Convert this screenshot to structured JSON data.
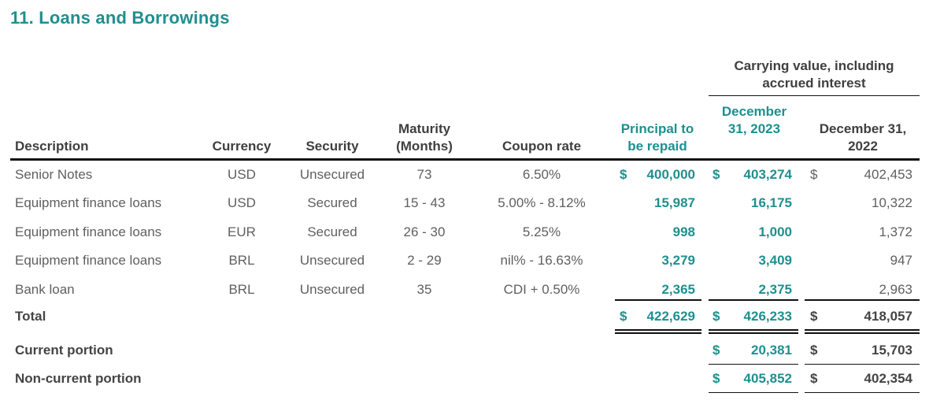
{
  "title": "11. Loans and Borrowings",
  "headers": {
    "carrying_group": "Carrying value, including accrued interest",
    "description": "Description",
    "currency": "Currency",
    "security": "Security",
    "maturity": "Maturity (Months)",
    "coupon": "Coupon rate",
    "principal": "Principal to be repaid",
    "dec2023": "December 31, 2023",
    "dec2022": "December 31, 2022"
  },
  "rows": [
    {
      "description": "Senior Notes",
      "currency": "USD",
      "security": "Unsecured",
      "maturity": "73",
      "coupon": "6.50%",
      "principal_sym": "$",
      "principal": "400,000",
      "dec2023_sym": "$",
      "dec2023": "403,274",
      "dec2022_sym": "$",
      "dec2022": "402,453"
    },
    {
      "description": "Equipment finance loans",
      "currency": "USD",
      "security": "Secured",
      "maturity": "15 - 43",
      "coupon": "5.00% - 8.12%",
      "principal": "15,987",
      "dec2023": "16,175",
      "dec2022": "10,322"
    },
    {
      "description": "Equipment finance loans",
      "currency": "EUR",
      "security": "Secured",
      "maturity": "26 - 30",
      "coupon": "5.25%",
      "principal": "998",
      "dec2023": "1,000",
      "dec2022": "1,372"
    },
    {
      "description": "Equipment finance loans",
      "currency": "BRL",
      "security": "Unsecured",
      "maturity": "2 - 29",
      "coupon": "nil% - 16.63%",
      "principal": "3,279",
      "dec2023": "3,409",
      "dec2022": "947"
    },
    {
      "description": "Bank loan",
      "currency": "BRL",
      "security": "Unsecured",
      "maturity": "35",
      "coupon": "CDI + 0.50%",
      "principal": "2,365",
      "dec2023": "2,375",
      "dec2022": "2,963"
    }
  ],
  "total": {
    "label": "Total",
    "principal_sym": "$",
    "principal": "422,629",
    "dec2023_sym": "$",
    "dec2023": "426,233",
    "dec2022_sym": "$",
    "dec2022": "418,057"
  },
  "current": {
    "label": "Current portion",
    "dec2023_sym": "$",
    "dec2023": "20,381",
    "dec2022_sym": "$",
    "dec2022": "15,703"
  },
  "noncurrent": {
    "label": "Non-current portion",
    "dec2023_sym": "$",
    "dec2023": "405,852",
    "dec2022_sym": "$",
    "dec2022": "402,354"
  }
}
